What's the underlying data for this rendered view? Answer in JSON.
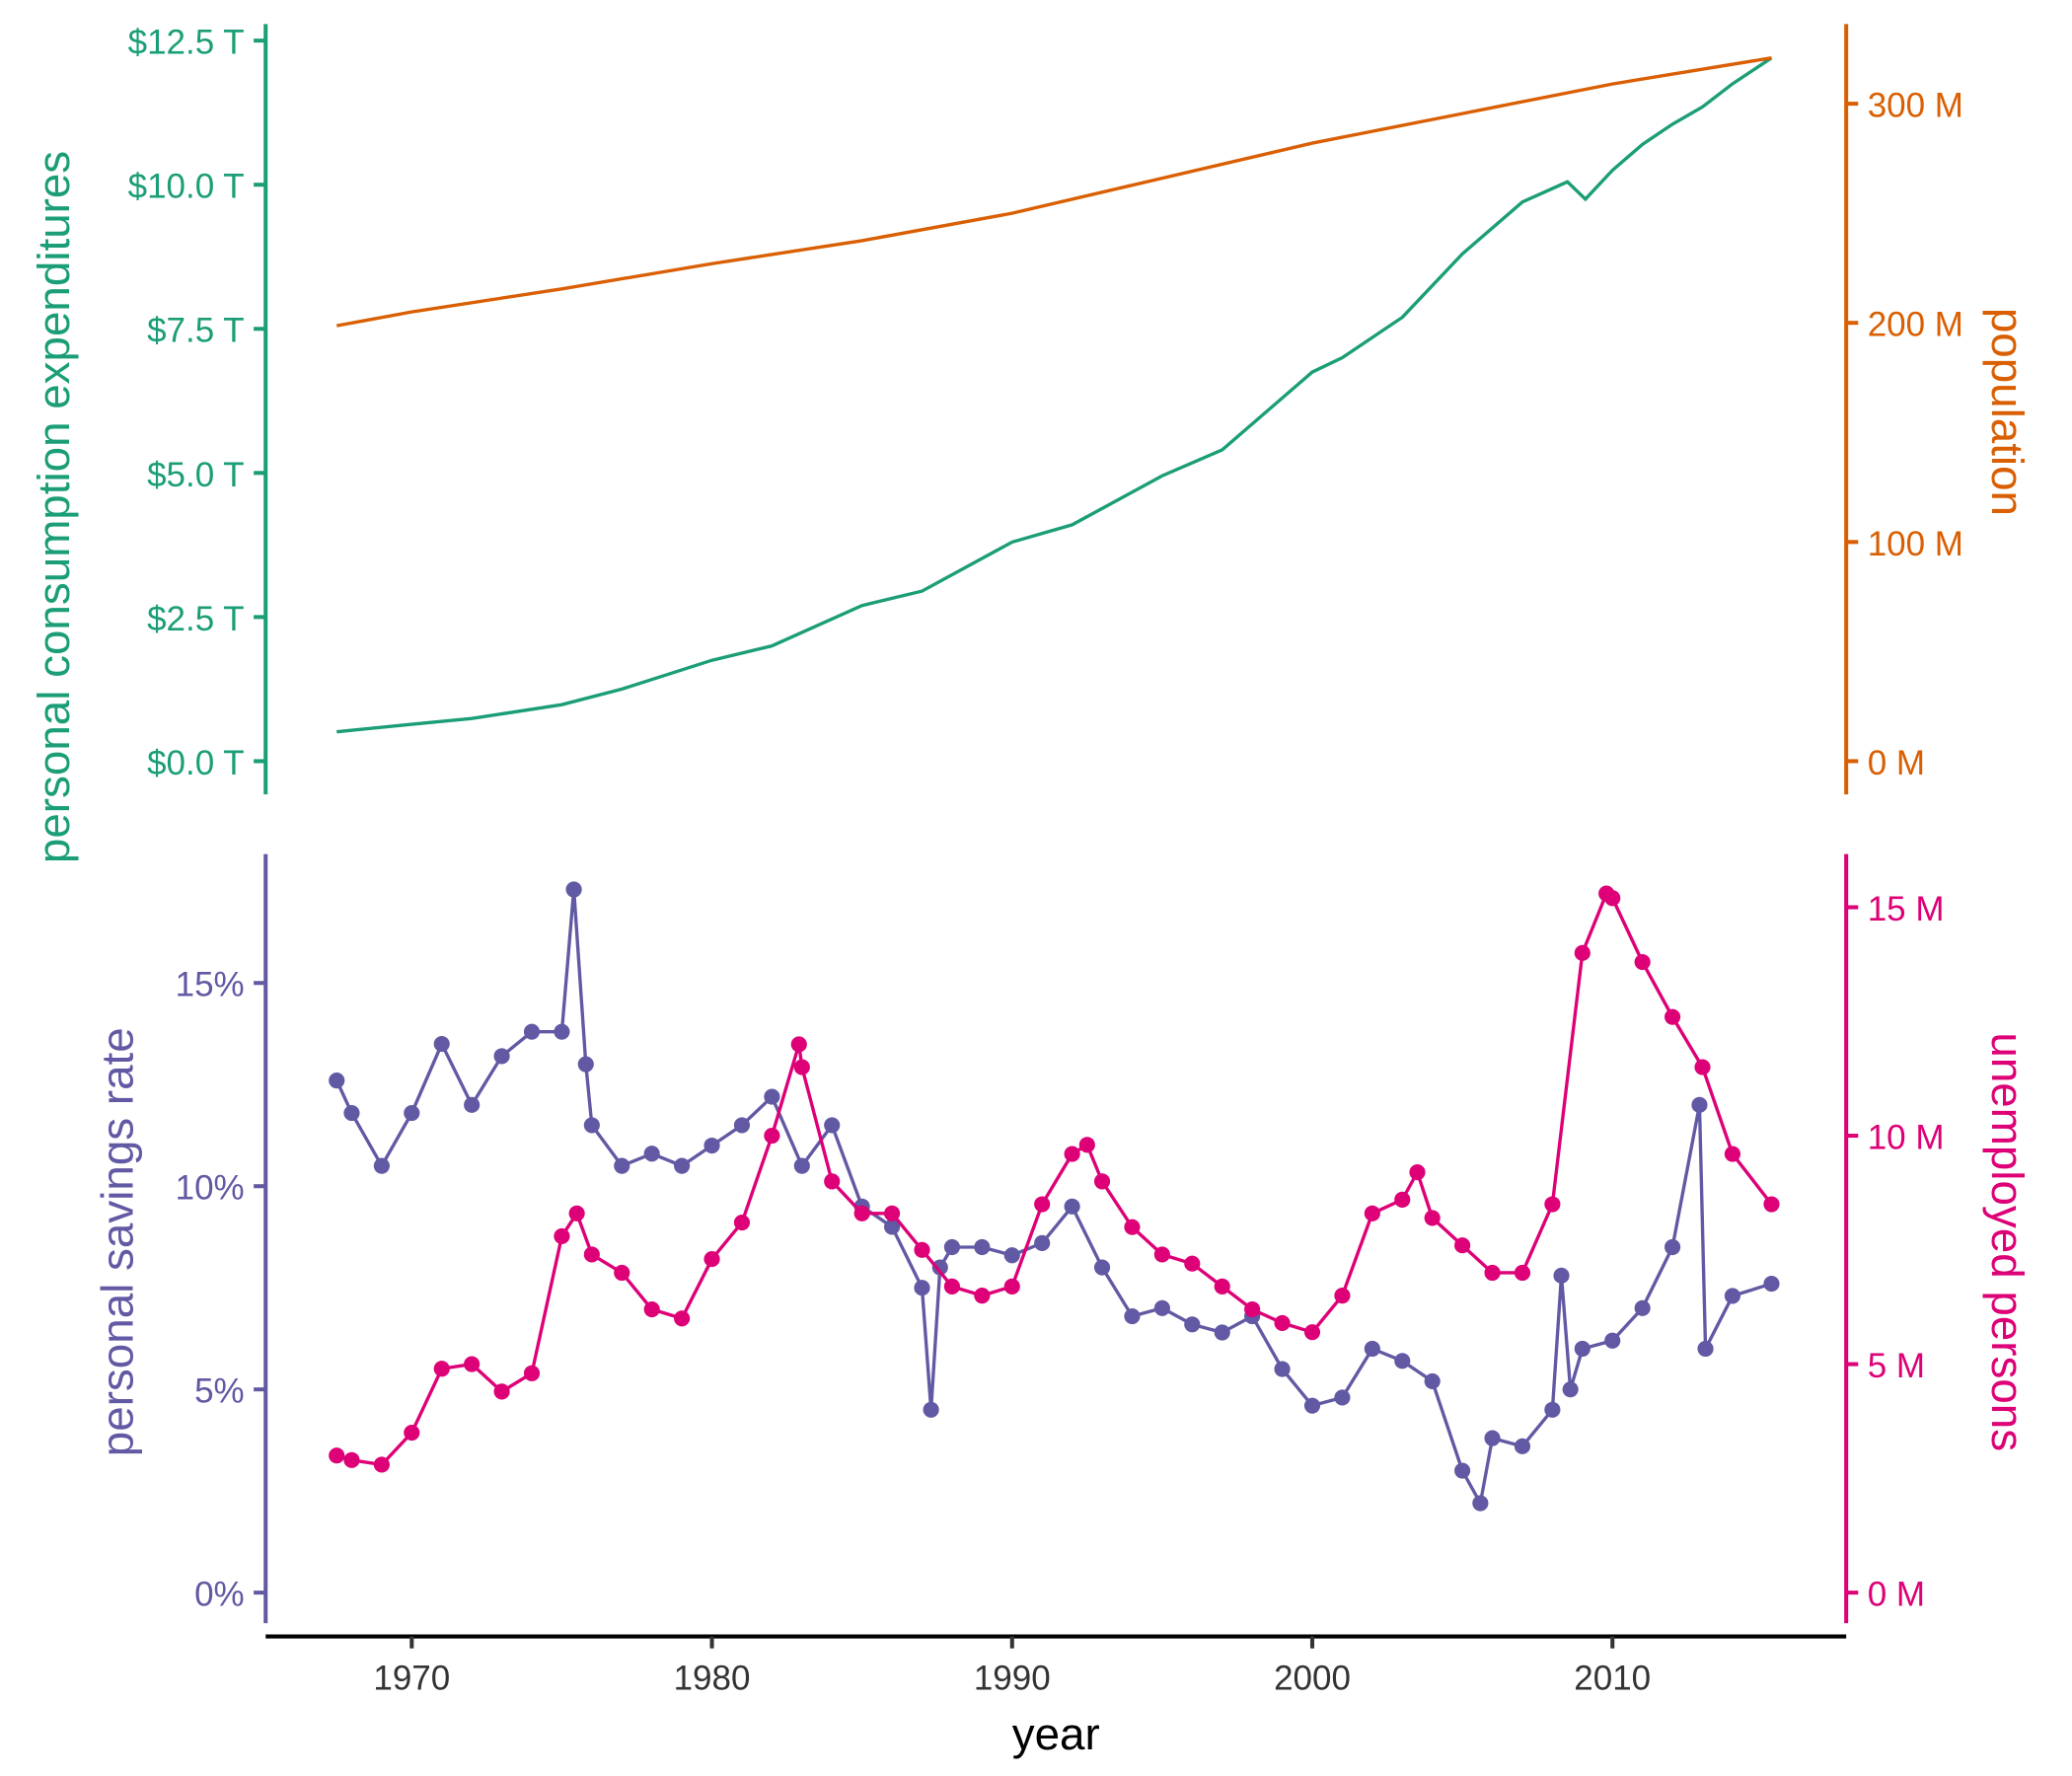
{
  "chart_data": [
    {
      "type": "line",
      "x_label": "",
      "left_axis": {
        "label": "personal consumption expenditures",
        "ticks": [
          "$0.0 T",
          "$2.5 T",
          "$5.0 T",
          "$7.5 T",
          "$10.0 T",
          "$12.5 T"
        ],
        "tick_values": [
          0,
          2.5,
          5,
          7.5,
          10,
          12.5
        ],
        "unit": "trillion USD",
        "color": "#1B9E77"
      },
      "right_axis": {
        "label": "population",
        "ticks": [
          "0 M",
          "100 M",
          "200 M",
          "300 M"
        ],
        "tick_values": [
          0,
          100,
          200,
          300
        ],
        "unit": "million",
        "color": "#D95F02"
      },
      "series": [
        {
          "axis": "left",
          "color": "#1B9E77",
          "x": [
            1967.5,
            1970,
            1972,
            1975,
            1977,
            1980,
            1982,
            1985,
            1987,
            1990,
            1992,
            1995,
            1997,
            2000,
            2001,
            2003,
            2005,
            2007,
            2008.5,
            2009.1,
            2010,
            2011,
            2012,
            2013,
            2014,
            2015.3
          ],
          "y": [
            0.51,
            0.64,
            0.74,
            0.98,
            1.25,
            1.75,
            2.0,
            2.7,
            2.95,
            3.8,
            4.1,
            4.95,
            5.4,
            6.75,
            7.0,
            7.7,
            8.8,
            9.7,
            10.05,
            9.75,
            10.25,
            10.7,
            11.05,
            11.35,
            11.75,
            12.2
          ]
        },
        {
          "axis": "right",
          "color": "#D95F02",
          "x": [
            1967.5,
            1970,
            1975,
            1980,
            1985,
            1990,
            1995,
            2000,
            2005,
            2010,
            2015.3
          ],
          "y": [
            198.7,
            205,
            215.5,
            227,
            237.5,
            250,
            266,
            282,
            295.5,
            309,
            320.9
          ]
        }
      ]
    },
    {
      "type": "line",
      "x_label": "year",
      "x_ticks": [
        1970,
        1980,
        1990,
        2000,
        2010
      ],
      "x_range": [
        1965,
        2017
      ],
      "left_axis": {
        "label": "personal savings rate",
        "ticks": [
          "0%",
          "5%",
          "10%",
          "15%"
        ],
        "tick_values": [
          0,
          5,
          10,
          15
        ],
        "color": "#6159A3"
      },
      "right_axis": {
        "label": "unemployed persons",
        "ticks": [
          "0 M",
          "5 M",
          "10 M",
          "15 M"
        ],
        "tick_values": [
          0,
          5,
          10,
          15
        ],
        "color": "#DD0077"
      },
      "series": [
        {
          "axis": "left",
          "color": "#6159A3",
          "x": [
            1967.5,
            1968,
            1969,
            1970,
            1971,
            1972,
            1973,
            1974,
            1975,
            1975.4,
            1975.8,
            1976,
            1977,
            1978,
            1979,
            1980,
            1981,
            1982,
            1983,
            1984,
            1985,
            1986,
            1987,
            1987.3,
            1987.6,
            1988,
            1989,
            1990,
            1991,
            1992,
            1993,
            1994,
            1995,
            1996,
            1997,
            1998,
            1999,
            2000,
            2001,
            2002,
            2003,
            2004,
            2005,
            2005.6,
            2006,
            2007,
            2008,
            2008.3,
            2008.6,
            2009,
            2010,
            2011,
            2012,
            2012.9,
            2013.1,
            2014,
            2015.3
          ],
          "y": [
            12.6,
            11.8,
            10.5,
            11.8,
            13.5,
            12.0,
            13.2,
            13.8,
            13.8,
            17.3,
            13.0,
            11.5,
            10.5,
            10.8,
            10.5,
            11.0,
            11.5,
            12.2,
            10.5,
            11.5,
            9.5,
            9.0,
            7.5,
            4.5,
            8.0,
            8.5,
            8.5,
            8.3,
            8.6,
            9.5,
            8.0,
            6.8,
            7.0,
            6.6,
            6.4,
            6.8,
            5.5,
            4.6,
            4.8,
            6.0,
            5.7,
            5.2,
            3.0,
            2.2,
            3.8,
            3.6,
            4.5,
            7.8,
            5.0,
            6.0,
            6.2,
            7.0,
            8.5,
            12.0,
            6.0,
            7.3,
            7.6
          ]
        },
        {
          "axis": "right",
          "color": "#DD0077",
          "x": [
            1967.5,
            1968,
            1969,
            1970,
            1971,
            1972,
            1973,
            1974,
            1975,
            1975.5,
            1976,
            1977,
            1978,
            1979,
            1980,
            1981,
            1982,
            1982.9,
            1983,
            1984,
            1985,
            1986,
            1987,
            1988,
            1989,
            1990,
            1991,
            1992,
            1992.5,
            1993,
            1994,
            1995,
            1996,
            1997,
            1998,
            1999,
            2000,
            2001,
            2002,
            2003,
            2003.5,
            2004,
            2005,
            2006,
            2007,
            2008,
            2009,
            2009.8,
            2010,
            2011,
            2012,
            2013,
            2014,
            2015.3
          ],
          "y": [
            3.0,
            2.9,
            2.8,
            3.5,
            4.9,
            5.0,
            4.4,
            4.8,
            7.8,
            8.3,
            7.4,
            7.0,
            6.2,
            6.0,
            7.3,
            8.1,
            10.0,
            12.0,
            11.5,
            9.0,
            8.3,
            8.3,
            7.5,
            6.7,
            6.5,
            6.7,
            8.5,
            9.6,
            9.8,
            9.0,
            8.0,
            7.4,
            7.2,
            6.7,
            6.2,
            5.9,
            5.7,
            6.5,
            8.3,
            8.6,
            9.2,
            8.2,
            7.6,
            7.0,
            7.0,
            8.5,
            14.0,
            15.3,
            15.2,
            13.8,
            12.6,
            11.5,
            9.6,
            8.5
          ]
        }
      ]
    }
  ]
}
